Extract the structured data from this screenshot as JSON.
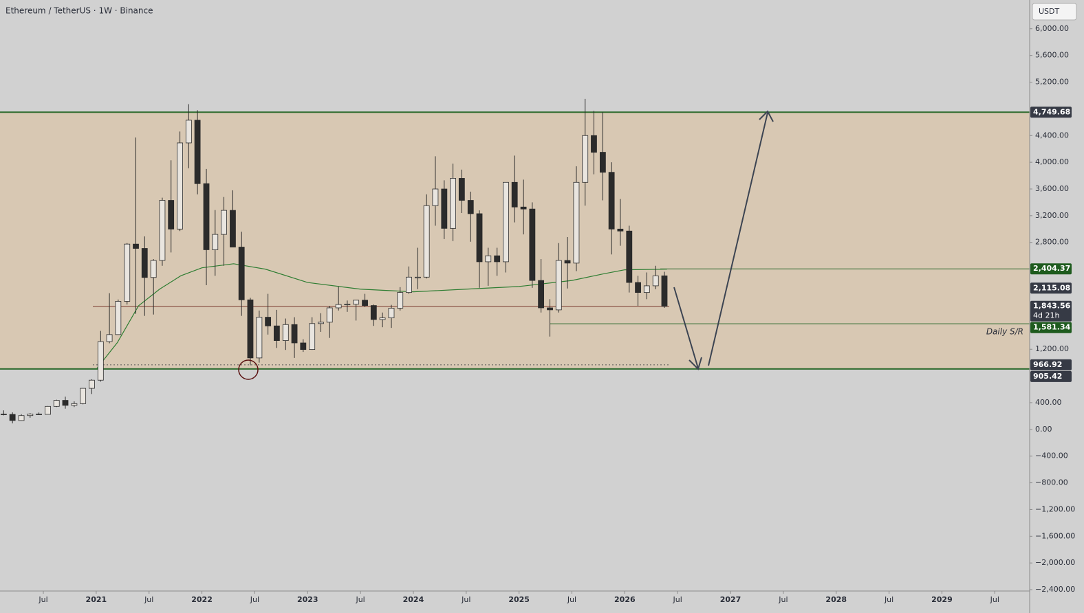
{
  "chart_data": {
    "type": "candlestick",
    "title": "Ethereum / TetherUS · 1W · Binance",
    "currency": "USDT",
    "up_color": "#e9e5df",
    "down_color": "#2b2b2b",
    "edge_color": "#2b2b2b",
    "x": [
      2020.125,
      2020.208,
      2020.292,
      2020.375,
      2020.458,
      2020.542,
      2020.625,
      2020.708,
      2020.792,
      2020.875,
      2020.958,
      2021.042,
      2021.125,
      2021.208,
      2021.292,
      2021.375,
      2021.458,
      2021.542,
      2021.625,
      2021.708,
      2021.792,
      2021.875,
      2021.958,
      2022.042,
      2022.125,
      2022.208,
      2022.292,
      2022.375,
      2022.458,
      2022.542,
      2022.625,
      2022.708,
      2022.792,
      2022.875,
      2022.958,
      2023.042,
      2023.125,
      2023.208,
      2023.292,
      2023.375,
      2023.458,
      2023.542,
      2023.625,
      2023.708,
      2023.792,
      2023.875,
      2023.958,
      2024.042,
      2024.125,
      2024.208,
      2024.292,
      2024.375,
      2024.458,
      2024.542,
      2024.625,
      2024.708,
      2024.792,
      2024.875,
      2024.958,
      2025.042,
      2025.125,
      2025.208,
      2025.292,
      2025.375,
      2025.458,
      2025.542,
      2025.625,
      2025.708,
      2025.792,
      2025.875,
      2025.958,
      2026.042,
      2026.125,
      2026.208,
      2026.292,
      2026.375
    ],
    "open": [
      230,
      225,
      133,
      207,
      231,
      225,
      345,
      435,
      360,
      386,
      615,
      737,
      1315,
      1420,
      1918,
      2775,
      2710,
      2275,
      2530,
      3430,
      3000,
      4290,
      4630,
      3680,
      2690,
      2920,
      3280,
      2730,
      1940,
      1070,
      1680,
      1550,
      1330,
      1570,
      1295,
      1196,
      1585,
      1605,
      1820,
      1870,
      1875,
      1935,
      1855,
      1645,
      1670,
      1815,
      2050,
      2280,
      2280,
      3350,
      3600,
      3010,
      3760,
      3430,
      3230,
      2510,
      2600,
      2510,
      3700,
      3330,
      3300,
      2230,
      1820,
      1790,
      2530,
      2490,
      3700,
      4400,
      4150,
      3850,
      3000,
      2970,
      2200,
      2050,
      2150,
      2300
    ],
    "high": [
      285,
      255,
      228,
      245,
      253,
      350,
      445,
      490,
      420,
      620,
      750,
      1475,
      2040,
      1945,
      2790,
      4370,
      2890,
      2550,
      3470,
      4030,
      4460,
      4870,
      4780,
      3900,
      3285,
      3480,
      3580,
      2960,
      1970,
      1780,
      2030,
      1790,
      1660,
      1680,
      1350,
      1680,
      1740,
      1850,
      2140,
      1930,
      1930,
      2030,
      1870,
      1750,
      1865,
      2130,
      2440,
      2720,
      3520,
      4090,
      3730,
      3980,
      3890,
      3560,
      3280,
      2720,
      2720,
      3680,
      4100,
      3740,
      3400,
      2550,
      1950,
      2790,
      2880,
      3940,
      4950,
      4770,
      4750,
      4000,
      3450,
      3050,
      2300,
      2350,
      2450,
      2360
    ],
    "low": [
      210,
      90,
      130,
      175,
      215,
      225,
      335,
      310,
      335,
      375,
      530,
      715,
      1290,
      1440,
      1870,
      1730,
      1700,
      1720,
      2450,
      2650,
      2970,
      3910,
      3520,
      2160,
      2300,
      2450,
      2800,
      1700,
      960,
      1000,
      1420,
      1220,
      1190,
      1070,
      1160,
      1190,
      1460,
      1370,
      1780,
      1760,
      1630,
      1830,
      1550,
      1530,
      1520,
      1780,
      2030,
      2100,
      2260,
      3050,
      2850,
      2820,
      3240,
      2810,
      2120,
      2150,
      2300,
      2350,
      3100,
      2920,
      2120,
      1750,
      1390,
      1750,
      2110,
      2370,
      3350,
      3820,
      3430,
      2620,
      2750,
      2050,
      1850,
      1950,
      2100,
      1820
    ],
    "close": [
      225,
      133,
      207,
      231,
      225,
      345,
      435,
      360,
      386,
      615,
      737,
      1315,
      1420,
      1918,
      2775,
      2710,
      2275,
      2530,
      3430,
      3000,
      4290,
      4630,
      3680,
      2690,
      2920,
      3280,
      2730,
      1940,
      1070,
      1680,
      1550,
      1330,
      1570,
      1295,
      1196,
      1585,
      1605,
      1820,
      1870,
      1875,
      1935,
      1855,
      1645,
      1670,
      1815,
      2050,
      2280,
      2280,
      3350,
      3600,
      3010,
      3760,
      3430,
      3230,
      2510,
      2600,
      2510,
      3700,
      3330,
      3300,
      2230,
      1820,
      1790,
      2530,
      2490,
      3700,
      4400,
      4150,
      3850,
      3000,
      2970,
      2200,
      2050,
      2150,
      2300,
      1843.56
    ],
    "moving_average": {
      "color": "#2e7d32",
      "x": [
        2021.0,
        2021.2,
        2021.4,
        2021.6,
        2021.8,
        2022.0,
        2022.3,
        2022.6,
        2023.0,
        2023.5,
        2024.0,
        2024.5,
        2025.0,
        2025.5,
        2025.8,
        2026.0,
        2026.4
      ],
      "values": [
        900,
        1300,
        1850,
        2100,
        2300,
        2420,
        2480,
        2400,
        2200,
        2100,
        2060,
        2100,
        2140,
        2230,
        2330,
        2390,
        2400
      ]
    },
    "levels": [
      {
        "value": 4749.68,
        "label": "4,749.68",
        "color": "#363a45"
      },
      {
        "value": 2404.37,
        "label": "2,404.37",
        "color": "#1e5b1e"
      },
      {
        "value": 2115.08,
        "label": "2,115.08",
        "color": "#363a45"
      },
      {
        "value": 1843.56,
        "label": "1,843.56",
        "color": "#363a45",
        "note": "4d 21h"
      },
      {
        "value": 1581.34,
        "label": "1,581.34",
        "color": "#1e5b1e",
        "annotation": "Daily S/R"
      },
      {
        "value": 966.92,
        "label": "966.92",
        "color": "#363a45"
      },
      {
        "value": 905.42,
        "label": "905.42",
        "color": "#363a45"
      }
    ],
    "ylim": [
      -2420,
      6430
    ],
    "yticks": [
      {
        "value": 6000,
        "label": "6,000.00"
      },
      {
        "value": 5600,
        "label": "5,600.00"
      },
      {
        "value": 5200,
        "label": "5,200.00"
      },
      {
        "value": 4400,
        "label": "4,400.00"
      },
      {
        "value": 4000,
        "label": "4,000.00"
      },
      {
        "value": 3600,
        "label": "3,600.00"
      },
      {
        "value": 3200,
        "label": "3,200.00"
      },
      {
        "value": 2800,
        "label": "2,800.00"
      },
      {
        "value": 1200,
        "label": "1,200.00"
      },
      {
        "value": 400,
        "label": "400.00"
      },
      {
        "value": 0,
        "label": "0.00"
      },
      {
        "value": -400,
        "label": "−400.00"
      },
      {
        "value": -800,
        "label": "−800.00"
      },
      {
        "value": -1200,
        "label": "−1,200.00"
      },
      {
        "value": -1600,
        "label": "−1,600.00"
      },
      {
        "value": -2000,
        "label": "−2,000.00"
      },
      {
        "value": -2400,
        "label": "−2,400.00"
      }
    ],
    "xlim": [
      2020.09,
      2029.83
    ],
    "xticks": [
      {
        "value": 2020.5,
        "label": "Jul"
      },
      2021,
      {
        "value": 2021.5,
        "label": "Jul"
      },
      2022,
      {
        "value": 2022.5,
        "label": "Jul"
      },
      2023,
      {
        "value": 2023.5,
        "label": "Jul"
      },
      2024,
      {
        "value": 2024.5,
        "label": "Jul"
      },
      2025,
      {
        "value": 2025.5,
        "label": "Jul"
      },
      2026,
      {
        "value": 2026.5,
        "label": "Jul"
      },
      2027,
      {
        "value": 2027.5,
        "label": "Jul"
      },
      2028,
      {
        "value": 2028.5,
        "label": "Jul"
      },
      2029,
      {
        "value": 2029.5,
        "label": "Jul"
      }
    ]
  }
}
